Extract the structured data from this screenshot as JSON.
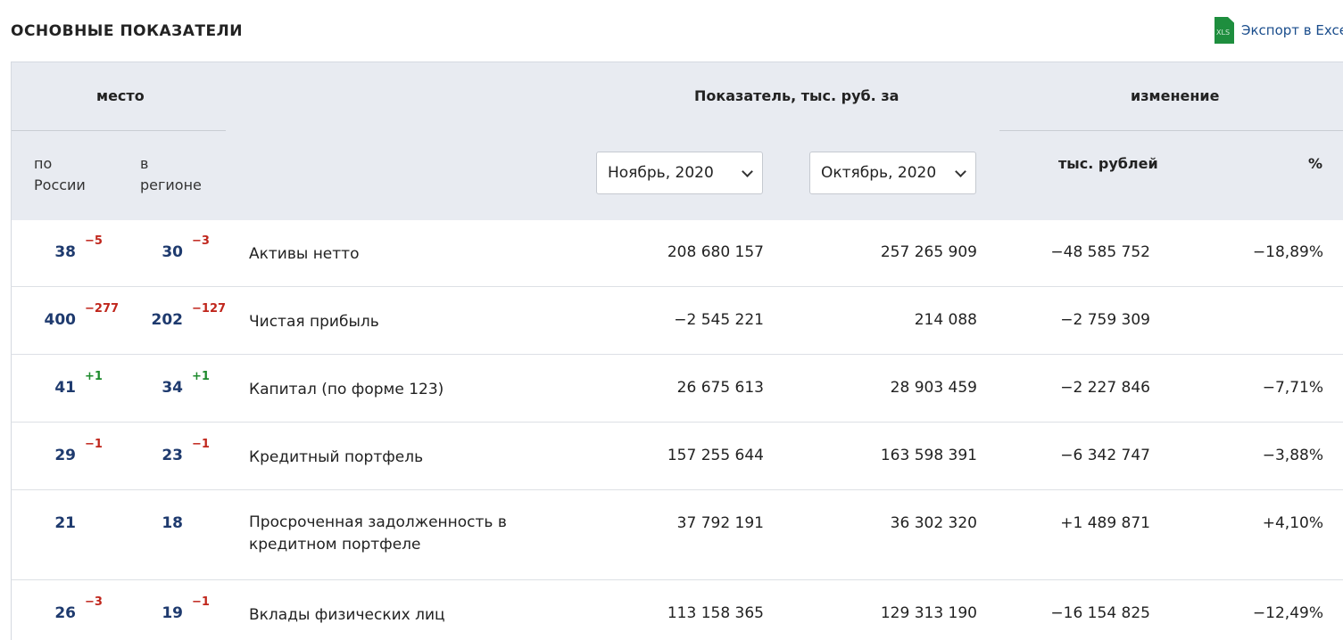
{
  "page": {
    "title": "ОСНОВНЫЕ ПОКАЗАТЕЛИ",
    "export": {
      "label": "Экспорт в Exce",
      "icon": "xls-file-icon",
      "icon_text": "XLS"
    }
  },
  "table": {
    "header": {
      "place": "место",
      "indicator": "Показатель, тыс. руб. за",
      "change": "изменение",
      "by_russia": "по\nРоссии",
      "in_region": "в\nрегионе",
      "period_current": "Ноябрь, 2020",
      "period_previous": "Октябрь, 2020",
      "change_abs": "тыс. рублей",
      "change_pct": "%"
    },
    "rows": [
      {
        "rank_russia": "38",
        "delta_russia": "−5",
        "delta_russia_sign": "neg",
        "rank_region": "30",
        "delta_region": "−3",
        "delta_region_sign": "neg",
        "name": "Активы нетто",
        "current": "208 680 157",
        "previous": "257 265 909",
        "change_abs": "−48 585 752",
        "change_pct": "−18,89%",
        "change_sign": "neg"
      },
      {
        "rank_russia": "400",
        "delta_russia": "−277",
        "delta_russia_sign": "neg",
        "rank_region": "202",
        "delta_region": "−127",
        "delta_region_sign": "neg",
        "name": "Чистая прибыль",
        "current": "−2 545 221",
        "previous": "214 088",
        "change_abs": "−2 759 309",
        "change_pct": "",
        "change_sign": "neg"
      },
      {
        "rank_russia": "41",
        "delta_russia": "+1",
        "delta_russia_sign": "pos",
        "rank_region": "34",
        "delta_region": "+1",
        "delta_region_sign": "pos",
        "name": "Капитал (по форме 123)",
        "current": "26 675 613",
        "previous": "28 903 459",
        "change_abs": "−2 227 846",
        "change_pct": "−7,71%",
        "change_sign": "neg"
      },
      {
        "rank_russia": "29",
        "delta_russia": "−1",
        "delta_russia_sign": "neg",
        "rank_region": "23",
        "delta_region": "−1",
        "delta_region_sign": "neg",
        "name": "Кредитный портфель",
        "current": "157 255 644",
        "previous": "163 598 391",
        "change_abs": "−6 342 747",
        "change_pct": "−3,88%",
        "change_sign": "neg"
      },
      {
        "rank_russia": "21",
        "delta_russia": "",
        "delta_russia_sign": "",
        "rank_region": "18",
        "delta_region": "",
        "delta_region_sign": "",
        "name": "Просроченная задолженность в\nкредитном портфеле",
        "current": "37 792 191",
        "previous": "36 302 320",
        "change_abs": "+1 489 871",
        "change_pct": "+4,10%",
        "change_sign": "pos"
      },
      {
        "rank_russia": "26",
        "delta_russia": "−3",
        "delta_russia_sign": "neg",
        "rank_region": "19",
        "delta_region": "−1",
        "delta_region_sign": "neg",
        "name": "Вклады физических лиц",
        "current": "113 158 365",
        "previous": "129 313 190",
        "change_abs": "−16 154 825",
        "change_pct": "−12,49%",
        "change_sign": "neg"
      }
    ]
  }
}
